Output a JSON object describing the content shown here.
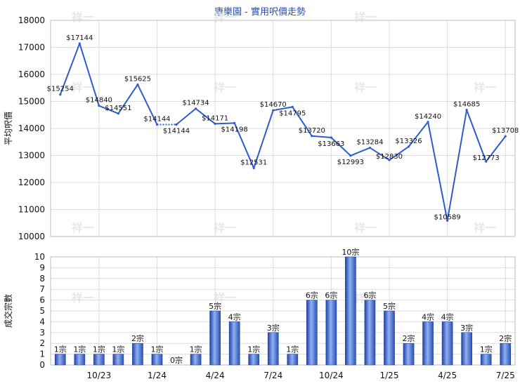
{
  "chart_data": [
    {
      "type": "line",
      "title": "康樂園 - 實用呎價走勢",
      "ylabel": "平均呎價",
      "ylim": [
        10000,
        18000
      ],
      "yticks": [
        10000,
        11000,
        12000,
        13000,
        14000,
        15000,
        16000,
        17000,
        18000
      ],
      "grid": true,
      "color": "#2f5bd0",
      "values": [
        15254,
        17144,
        14840,
        14551,
        15625,
        14144,
        14144,
        14734,
        14171,
        14198,
        12531,
        14670,
        14795,
        13720,
        13663,
        12993,
        13284,
        12830,
        13326,
        14240,
        10589,
        14685,
        12773,
        13708
      ],
      "labels": [
        "$15254",
        "$17144",
        "$14840",
        "$14551",
        "$15625",
        "$14144",
        "$14144",
        "$14734",
        "$14171",
        "$14198",
        "$12531",
        "$14670",
        "$14795",
        "$13720",
        "$13663",
        "$12993",
        "$13284",
        "$12830",
        "$13326",
        "$14240",
        "$10589",
        "$14685",
        "$12773",
        "$13708"
      ],
      "dotted_segment": [
        5,
        6
      ]
    },
    {
      "type": "bar",
      "ylabel": "成交宗數",
      "ylim": [
        0,
        10
      ],
      "yticks": [
        0,
        1,
        2,
        3,
        4,
        5,
        6,
        7,
        8,
        9,
        10
      ],
      "xtick_labels": [
        {
          "label": "10/23",
          "index": 2
        },
        {
          "label": "1/24",
          "index": 5
        },
        {
          "label": "4/24",
          "index": 8
        },
        {
          "label": "7/24",
          "index": 11
        },
        {
          "label": "10/24",
          "index": 14
        },
        {
          "label": "1/25",
          "index": 17
        },
        {
          "label": "4/25",
          "index": 20
        },
        {
          "label": "7/25",
          "index": 23
        }
      ],
      "values": [
        1,
        1,
        1,
        1,
        2,
        1,
        0,
        1,
        5,
        4,
        1,
        3,
        1,
        6,
        6,
        10,
        6,
        5,
        2,
        4,
        4,
        3,
        1,
        2
      ],
      "labels": [
        "1宗",
        "1宗",
        "1宗",
        "1宗",
        "2宗",
        "1宗",
        "0宗",
        "1宗",
        "5宗",
        "4宗",
        "1宗",
        "3宗",
        "1宗",
        "6宗",
        "6宗",
        "10宗",
        "6宗",
        "5宗",
        "2宗",
        "4宗",
        "4宗",
        "3宗",
        "1宗",
        "2宗"
      ],
      "color": "#3b63c8"
    }
  ],
  "watermark": "祥一"
}
